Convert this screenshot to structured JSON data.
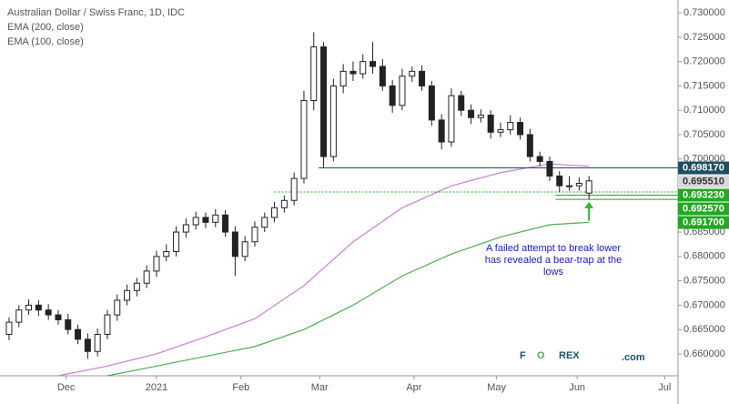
{
  "chart_data": {
    "type": "candlestick",
    "title": "Australian Dollar / Swiss Franc, 1D, IDC",
    "x": [
      0,
      1,
      2,
      3,
      4,
      5,
      6,
      7,
      8,
      9,
      10,
      11,
      12,
      13,
      14,
      15,
      16,
      17,
      18,
      19,
      20,
      21,
      22,
      23,
      24,
      25,
      26,
      27,
      28,
      29,
      30,
      31,
      32,
      33,
      34,
      35,
      36,
      37,
      38,
      39,
      40,
      41,
      42,
      43,
      44,
      45,
      46,
      47,
      48,
      49,
      50,
      51,
      52,
      53,
      54,
      55,
      56,
      57,
      58,
      59
    ],
    "open": [
      0.664,
      0.6665,
      0.669,
      0.67,
      0.669,
      0.668,
      0.667,
      0.665,
      0.663,
      0.6605,
      0.664,
      0.668,
      0.671,
      0.673,
      0.6745,
      0.677,
      0.68,
      0.681,
      0.685,
      0.6865,
      0.688,
      0.687,
      0.6885,
      0.685,
      0.68,
      0.683,
      0.686,
      0.688,
      0.69,
      0.6915,
      0.696,
      0.712,
      0.723,
      0.7005,
      0.715,
      0.718,
      0.7175,
      0.72,
      0.719,
      0.715,
      0.711,
      0.717,
      0.718,
      0.715,
      0.708,
      0.7035,
      0.713,
      0.71,
      0.7085,
      0.709,
      0.7055,
      0.706,
      0.7075,
      0.705,
      0.7005,
      0.6995,
      0.6965,
      0.6945,
      0.6945,
      0.693
    ],
    "high": [
      0.6675,
      0.67,
      0.6712,
      0.671,
      0.6702,
      0.669,
      0.6682,
      0.666,
      0.6642,
      0.6652,
      0.669,
      0.6722,
      0.6742,
      0.6756,
      0.6782,
      0.6812,
      0.6825,
      0.6862,
      0.6878,
      0.6892,
      0.689,
      0.6897,
      0.6895,
      0.6862,
      0.6842,
      0.6872,
      0.689,
      0.6912,
      0.6925,
      0.6972,
      0.714,
      0.726,
      0.724,
      0.7165,
      0.7195,
      0.72,
      0.7215,
      0.724,
      0.7205,
      0.7162,
      0.7185,
      0.719,
      0.7192,
      0.716,
      0.7092,
      0.7145,
      0.714,
      0.7112,
      0.7102,
      0.71,
      0.7075,
      0.709,
      0.7085,
      0.7062,
      0.7015,
      0.7005,
      0.6975,
      0.6965,
      0.6962,
      0.6965
    ],
    "low": [
      0.6628,
      0.6655,
      0.668,
      0.6678,
      0.667,
      0.666,
      0.664,
      0.662,
      0.659,
      0.6595,
      0.663,
      0.6668,
      0.67,
      0.6718,
      0.6735,
      0.6758,
      0.679,
      0.68,
      0.6838,
      0.6855,
      0.6858,
      0.686,
      0.684,
      0.676,
      0.679,
      0.682,
      0.685,
      0.687,
      0.689,
      0.6905,
      0.695,
      0.71,
      0.6982,
      0.6995,
      0.7135,
      0.716,
      0.7165,
      0.7175,
      0.714,
      0.7095,
      0.71,
      0.7158,
      0.714,
      0.7068,
      0.702,
      0.7025,
      0.7088,
      0.7072,
      0.7075,
      0.7042,
      0.7045,
      0.705,
      0.704,
      0.6995,
      0.6985,
      0.6955,
      0.6932,
      0.6935,
      0.6935,
      0.6917
    ],
    "close": [
      0.6665,
      0.669,
      0.67,
      0.669,
      0.668,
      0.667,
      0.665,
      0.663,
      0.6605,
      0.664,
      0.668,
      0.671,
      0.673,
      0.6745,
      0.677,
      0.68,
      0.681,
      0.685,
      0.6865,
      0.688,
      0.687,
      0.6885,
      0.685,
      0.68,
      0.683,
      0.686,
      0.688,
      0.69,
      0.6915,
      0.696,
      0.712,
      0.723,
      0.7005,
      0.715,
      0.718,
      0.7175,
      0.72,
      0.719,
      0.715,
      0.711,
      0.717,
      0.718,
      0.715,
      0.708,
      0.7035,
      0.713,
      0.71,
      0.7085,
      0.709,
      0.7055,
      0.706,
      0.7075,
      0.705,
      0.7005,
      0.6995,
      0.6965,
      0.6945,
      0.6945,
      0.695,
      0.69551
    ],
    "up_color": "#ffffff",
    "down_color": "#222222",
    "candle_stroke": "#222222",
    "series": [
      {
        "name": "EMA (200, close)",
        "color": "#4caf50",
        "x": [
          10,
          15,
          20,
          25,
          30,
          35,
          40,
          45,
          50,
          55,
          59
        ],
        "values": [
          0.6555,
          0.6575,
          0.6595,
          0.6615,
          0.665,
          0.67,
          0.676,
          0.6805,
          0.684,
          0.6865,
          0.687
        ]
      },
      {
        "name": "EMA (100, close)",
        "color": "#c77fd6",
        "x": [
          5,
          10,
          15,
          20,
          25,
          30,
          35,
          40,
          45,
          50,
          55,
          59
        ],
        "values": [
          0.6555,
          0.6575,
          0.66,
          0.6635,
          0.6672,
          0.674,
          0.683,
          0.69,
          0.6945,
          0.6972,
          0.699,
          0.6985
        ]
      }
    ],
    "xlim": [
      -0.46,
      68.06
    ],
    "xticks": [
      {
        "value": 5.8,
        "label": "Dec"
      },
      {
        "value": 15,
        "label": "2021"
      },
      {
        "value": 23.6,
        "label": "Feb"
      },
      {
        "value": 31.6,
        "label": "Mar"
      },
      {
        "value": 41.2,
        "label": "Apr"
      },
      {
        "value": 49.6,
        "label": "May"
      },
      {
        "value": 57.8,
        "label": "Jun"
      },
      {
        "value": 66.7,
        "label": "Jul"
      }
    ],
    "ylim": [
      0.6555,
      0.7317
    ],
    "yticks": [
      {
        "value": 0.66,
        "label": "0.660000"
      },
      {
        "value": 0.665,
        "label": "0.665000"
      },
      {
        "value": 0.67,
        "label": "0.670000"
      },
      {
        "value": 0.675,
        "label": "0.675000"
      },
      {
        "value": 0.68,
        "label": "0.680000"
      },
      {
        "value": 0.685,
        "label": "0.685000"
      },
      {
        "value": 0.69,
        "label": "0.690000"
      },
      {
        "value": 0.695,
        "label": "0.695000"
      },
      {
        "value": 0.7,
        "label": "0.700000"
      },
      {
        "value": 0.705,
        "label": "0.705000"
      },
      {
        "value": 0.71,
        "label": "0.710000"
      },
      {
        "value": 0.715,
        "label": "0.715000"
      },
      {
        "value": 0.72,
        "label": "0.720000"
      },
      {
        "value": 0.725,
        "label": "0.725000"
      },
      {
        "value": 0.73,
        "label": "0.730000"
      }
    ],
    "levels": [
      {
        "value": 0.69817,
        "label": "0.698170",
        "color": "#1f4e5f",
        "text_color": "#ffffff",
        "from_x": 31.5
      },
      {
        "value": 0.69551,
        "label": "0.695510",
        "color": "#d9d9d9",
        "text_color": "#333333"
      },
      {
        "value": 0.69323,
        "label": "0.693230",
        "color": "#22a822",
        "text_color": "#ffffff",
        "from_x": 27
      },
      {
        "value": 0.69257,
        "label": "0.692570",
        "color": "#22a822",
        "text_color": "#ffffff",
        "from_x": 55.6
      },
      {
        "value": 0.6917,
        "label": "0.691700",
        "color": "#22a822",
        "text_color": "#ffffff",
        "from_x": 55.6
      }
    ],
    "arrow": {
      "x": 59,
      "from": 0.6873,
      "to": 0.6912,
      "color": "#22c022"
    },
    "annotation": [
      "A failed attempt to break lower",
      "has revealed a bear-trap at the",
      "lows"
    ],
    "annotation_color": "#1a1ad6",
    "logo": [
      "F",
      "O",
      "REX",
      ".com"
    ]
  }
}
